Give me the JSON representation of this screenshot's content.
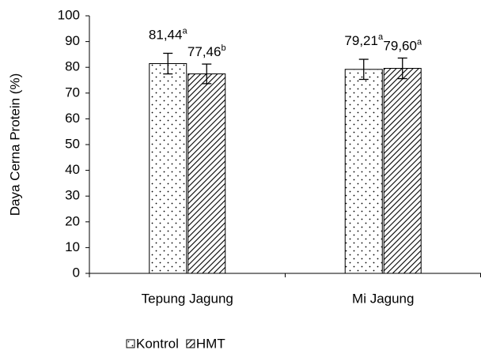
{
  "chart_data": {
    "type": "bar",
    "y_label": "Daya Cerna Protein (%)",
    "categories": [
      "Tepung Jagung",
      "Mi Jagung"
    ],
    "series": [
      {
        "name": "Kontrol",
        "color": "#000000",
        "pattern": "dots",
        "values": [
          81.44,
          79.21
        ],
        "errors": [
          4.0,
          3.9
        ],
        "value_labels": [
          "81,44",
          "79,21"
        ],
        "letters": [
          "a",
          "a"
        ]
      },
      {
        "name": "HMT",
        "color": "#000000",
        "pattern": "hatch",
        "values": [
          77.46,
          79.6
        ],
        "errors": [
          3.8,
          4.0
        ],
        "value_labels": [
          "77,46",
          "79,60"
        ],
        "letters": [
          "b",
          "a"
        ]
      }
    ],
    "ylim": [
      0,
      100
    ],
    "yticks": [
      0,
      10,
      20,
      30,
      40,
      50,
      60,
      70,
      80,
      90,
      100
    ],
    "legend": "bottom"
  }
}
